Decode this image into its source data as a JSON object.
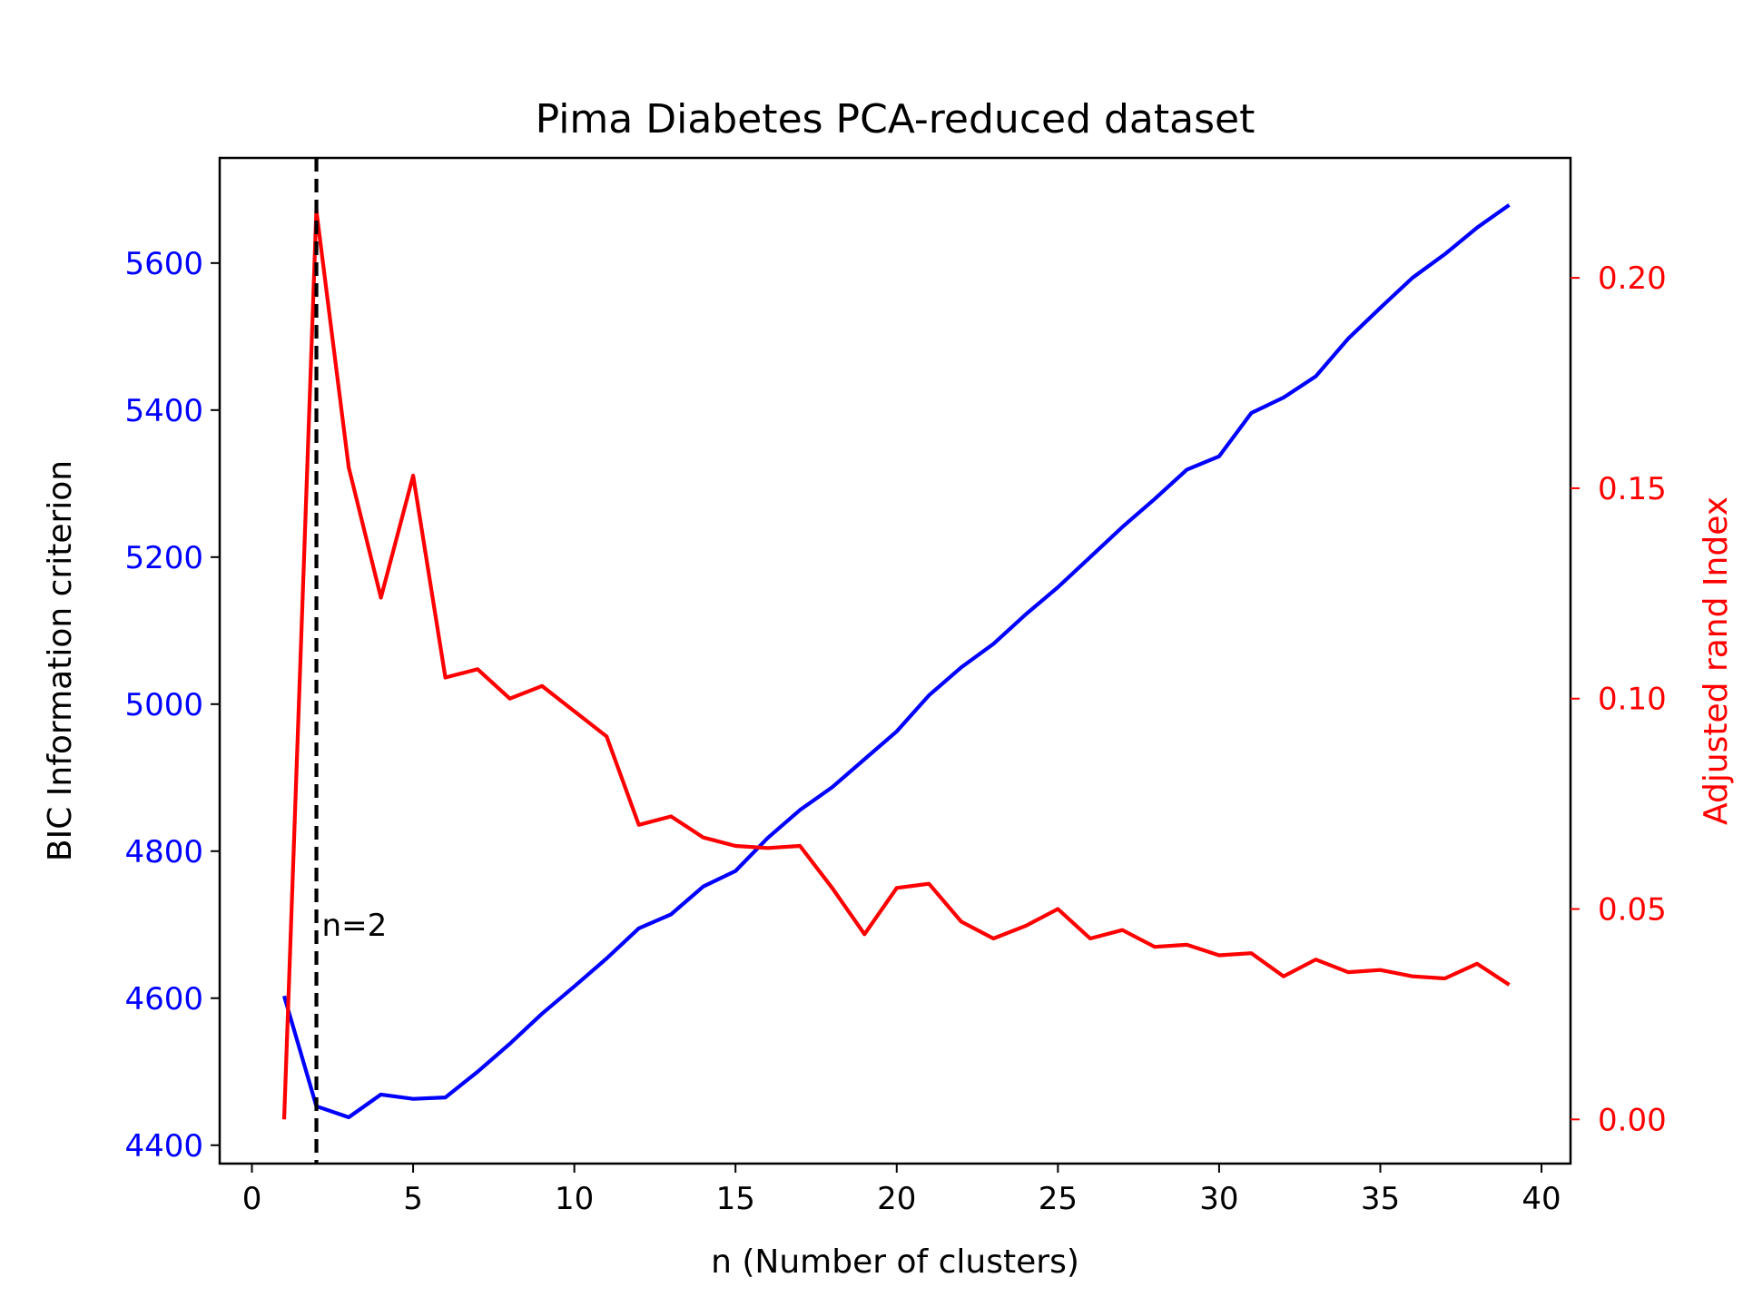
{
  "chart_data": {
    "type": "line",
    "title": "Pima Diabetes PCA-reduced dataset",
    "xlabel": "n (Number of clusters)",
    "ylabel_left": "BIC Information criterion",
    "ylabel_right": "Adjusted rand Index",
    "xlim": [
      -1,
      40.9
    ],
    "ylim_left": [
      4375,
      5743
    ],
    "ylim_right": [
      -0.0105,
      0.2285
    ],
    "xticks": [
      0,
      5,
      10,
      15,
      20,
      25,
      30,
      35,
      40
    ],
    "yticks_left": [
      4400,
      4600,
      4800,
      5000,
      5200,
      5400,
      5600
    ],
    "yticks_right": [
      0.0,
      0.05,
      0.1,
      0.15,
      0.2
    ],
    "yticks_right_labels": [
      "0.00",
      "0.05",
      "0.10",
      "0.15",
      "0.20"
    ],
    "grid": false,
    "x": [
      1,
      2,
      3,
      4,
      5,
      6,
      7,
      8,
      9,
      10,
      11,
      12,
      13,
      14,
      15,
      16,
      17,
      18,
      19,
      20,
      21,
      22,
      23,
      24,
      25,
      26,
      27,
      28,
      29,
      30,
      31,
      32,
      33,
      34,
      35,
      36,
      37,
      38,
      39
    ],
    "series": [
      {
        "name": "BIC",
        "axis": "left",
        "color": "#0000ff",
        "values": [
          4603,
          4453,
          4438,
          4469,
          4463,
          4465,
          4500,
          4538,
          4579,
          4616,
          4654,
          4695,
          4714,
          4752,
          4773,
          4818,
          4856,
          4887,
          4925,
          4963,
          5012,
          5050,
          5082,
          5122,
          5159,
          5200,
          5241,
          5279,
          5319,
          5337,
          5396,
          5417,
          5446,
          5497,
          5539,
          5580,
          5612,
          5648,
          5679
        ]
      },
      {
        "name": "ARI",
        "axis": "right",
        "color": "#ff0000",
        "values": [
          0.0,
          0.216,
          0.155,
          0.124,
          0.153,
          0.105,
          0.107,
          0.1,
          0.103,
          0.097,
          0.091,
          0.07,
          0.072,
          0.067,
          0.065,
          0.0645,
          0.065,
          0.055,
          0.044,
          0.055,
          0.056,
          0.047,
          0.043,
          0.046,
          0.05,
          0.043,
          0.045,
          0.041,
          0.0415,
          0.039,
          0.0395,
          0.034,
          0.038,
          0.035,
          0.0355,
          0.034,
          0.0335,
          0.037,
          0.032
        ]
      }
    ],
    "vline": {
      "x": 2,
      "style": "dashed",
      "color": "#000000",
      "label": "n=2"
    }
  }
}
